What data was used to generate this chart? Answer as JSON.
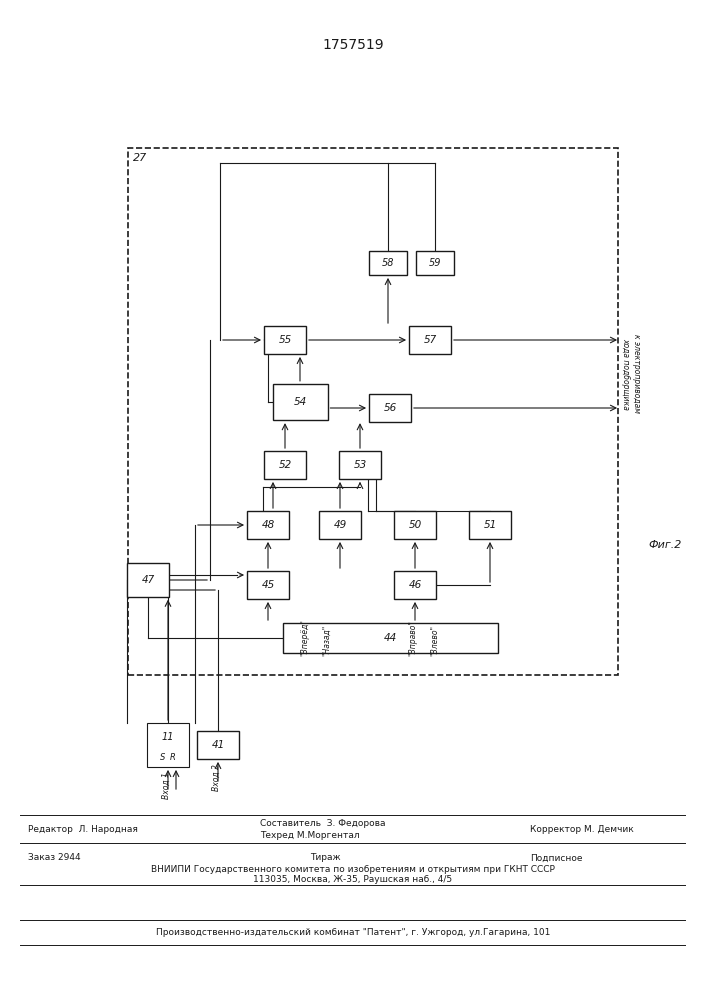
{
  "title": "1757519",
  "fig2_label": "Фиг.2",
  "right_label_line1": "к электроприводам",
  "right_label_line2": "хода подборщика",
  "outer_box_label": "27",
  "background_color": "#ffffff",
  "line_color": "#1a1a1a",
  "footer": {
    "editor": "Редактор  Л. Народная",
    "composer_line1": "Составитель  З. Федорова",
    "composer_line2": "Техред М.Моргентал",
    "corrector": "Корректор М. Демчик",
    "order": "Заказ 2944",
    "tirazh": "Тираж",
    "podpisnoe": "Подписное",
    "vniip1": "ВНИИПИ Государственного комитета по изобретениям и открытиям при ГКНТ СССР",
    "vniip2": "113035, Москва, Ж-35, Раушская наб., 4/5",
    "prod": "Производственно-издательский комбинат \"Патент\", г. Ужгород, ул.Гагарина, 101"
  }
}
